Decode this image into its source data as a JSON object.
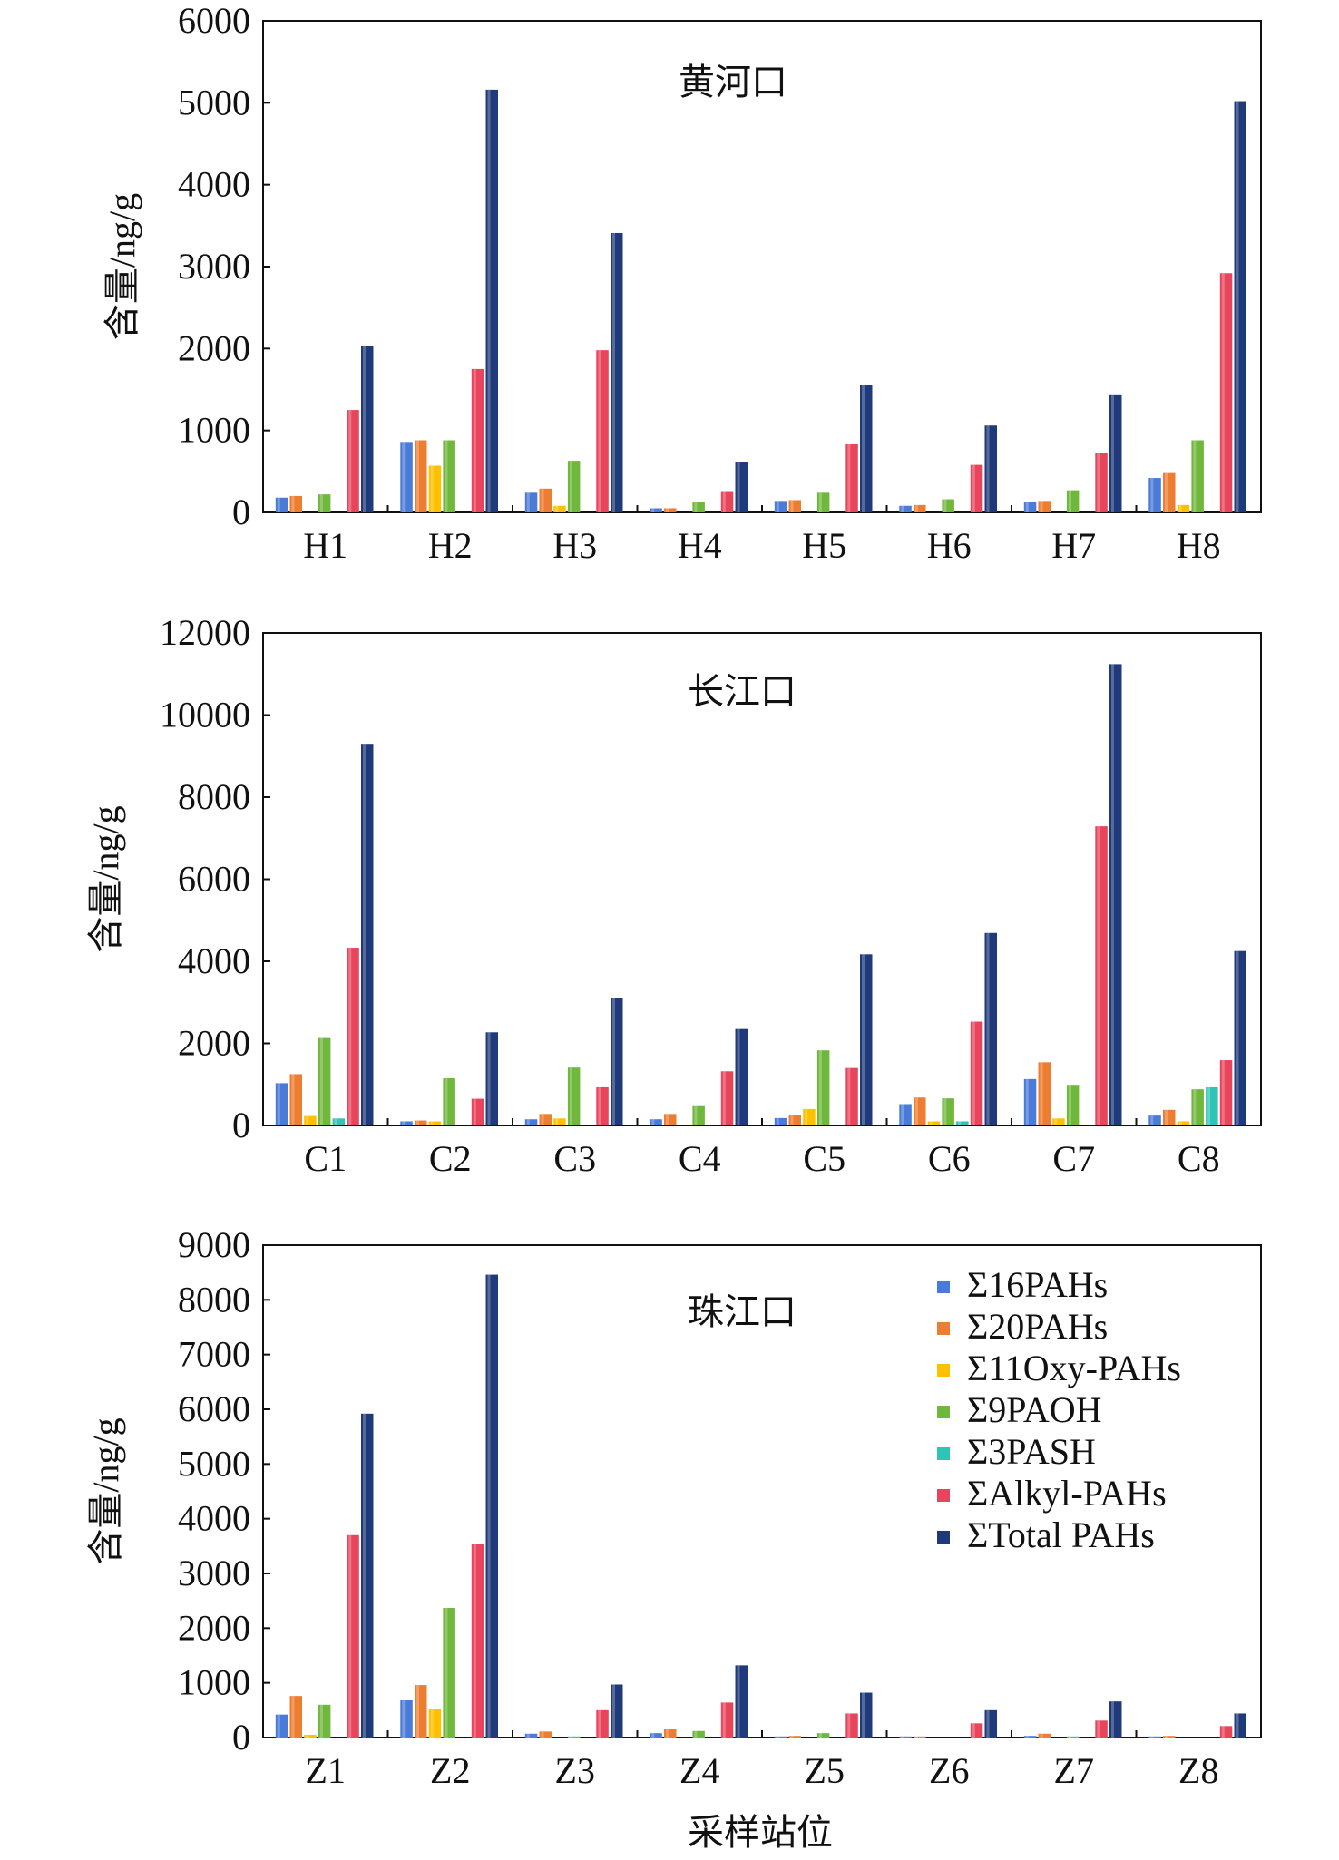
{
  "chart_data": {
    "type": "bar",
    "xlabel": "采样站位",
    "series_names": [
      "Σ16PAHs",
      "Σ20PAHs",
      "Σ11Oxy-PAHs",
      "Σ9PAOH",
      "Σ3PASH",
      "ΣAlkyl-PAHs",
      "ΣTotal PAHs"
    ],
    "colors": [
      "#4a7bd8",
      "#ed7d31",
      "#ffc000",
      "#70b83c",
      "#2ec4b6",
      "#e8455d",
      "#1f3a7a"
    ],
    "legend_position": "top-right of third panel",
    "panels": [
      {
        "title": "黄河口",
        "ylabel": "含量/ng/g",
        "ylim": [
          0,
          6000
        ],
        "yticks": [
          0,
          1000,
          2000,
          3000,
          4000,
          5000,
          6000
        ],
        "categories": [
          "H1",
          "H2",
          "H3",
          "H4",
          "H5",
          "H6",
          "H7",
          "H8"
        ],
        "series": [
          {
            "name": "Σ16PAHs",
            "values": [
              180,
              860,
              240,
              50,
              140,
              80,
              130,
              420
            ]
          },
          {
            "name": "Σ20PAHs",
            "values": [
              200,
              880,
              290,
              50,
              150,
              90,
              140,
              480
            ]
          },
          {
            "name": "Σ11Oxy-PAHs",
            "values": [
              0,
              570,
              80,
              0,
              0,
              0,
              0,
              90
            ]
          },
          {
            "name": "Σ9PAOH",
            "values": [
              220,
              880,
              630,
              130,
              240,
              160,
              270,
              880
            ]
          },
          {
            "name": "Σ3PASH",
            "values": [
              0,
              0,
              0,
              0,
              0,
              0,
              0,
              0
            ]
          },
          {
            "name": "ΣAlkyl-PAHs",
            "values": [
              1250,
              1750,
              1980,
              260,
              830,
              580,
              730,
              2920
            ]
          },
          {
            "name": "ΣTotal PAHs",
            "values": [
              2030,
              5160,
              3410,
              620,
              1550,
              1060,
              1430,
              5020
            ]
          }
        ]
      },
      {
        "title": "长江口",
        "ylabel": "含量/ng/g",
        "ylim": [
          0,
          12000
        ],
        "yticks": [
          0,
          2000,
          4000,
          6000,
          8000,
          10000,
          12000
        ],
        "categories": [
          "C1",
          "C2",
          "C3",
          "C4",
          "C5",
          "C6",
          "C7",
          "C8"
        ],
        "series": [
          {
            "name": "Σ16PAHs",
            "values": [
              1030,
              100,
              150,
              150,
              180,
              520,
              1130,
              240
            ]
          },
          {
            "name": "Σ20PAHs",
            "values": [
              1250,
              120,
              280,
              280,
              250,
              680,
              1540,
              380
            ]
          },
          {
            "name": "Σ11Oxy-PAHs",
            "values": [
              230,
              100,
              170,
              0,
              400,
              100,
              170,
              100
            ]
          },
          {
            "name": "Σ9PAOH",
            "values": [
              2130,
              1150,
              1410,
              470,
              1830,
              660,
              990,
              880
            ]
          },
          {
            "name": "Σ3PASH",
            "values": [
              170,
              0,
              0,
              0,
              0,
              100,
              0,
              930
            ]
          },
          {
            "name": "ΣAlkyl-PAHs",
            "values": [
              4330,
              650,
              930,
              1320,
              1400,
              2530,
              7290,
              1590
            ]
          },
          {
            "name": "ΣTotal PAHs",
            "values": [
              9300,
              2270,
              3110,
              2350,
              4170,
              4690,
              11240,
              4250
            ]
          }
        ]
      },
      {
        "title": "珠江口",
        "ylabel": "含量/ng/g",
        "ylim": [
          0,
          9000
        ],
        "yticks": [
          0,
          1000,
          2000,
          3000,
          4000,
          5000,
          6000,
          7000,
          8000,
          9000
        ],
        "categories": [
          "Z1",
          "Z2",
          "Z3",
          "Z4",
          "Z5",
          "Z6",
          "Z7",
          "Z8"
        ],
        "series": [
          {
            "name": "Σ16PAHs",
            "values": [
              420,
              680,
              70,
              80,
              20,
              20,
              30,
              20
            ]
          },
          {
            "name": "Σ20PAHs",
            "values": [
              760,
              960,
              110,
              150,
              30,
              20,
              70,
              30
            ]
          },
          {
            "name": "Σ11Oxy-PAHs",
            "values": [
              50,
              520,
              0,
              0,
              0,
              0,
              0,
              0
            ]
          },
          {
            "name": "Σ9PAOH",
            "values": [
              600,
              2370,
              20,
              120,
              80,
              0,
              20,
              0
            ]
          },
          {
            "name": "Σ3PASH",
            "values": [
              0,
              0,
              0,
              0,
              0,
              0,
              0,
              0
            ]
          },
          {
            "name": "ΣAlkyl-PAHs",
            "values": [
              3700,
              3540,
              500,
              640,
              440,
              260,
              310,
              210
            ]
          },
          {
            "name": "ΣTotal PAHs",
            "values": [
              5920,
              8460,
              970,
              1320,
              820,
              500,
              660,
              440
            ]
          }
        ]
      }
    ]
  }
}
